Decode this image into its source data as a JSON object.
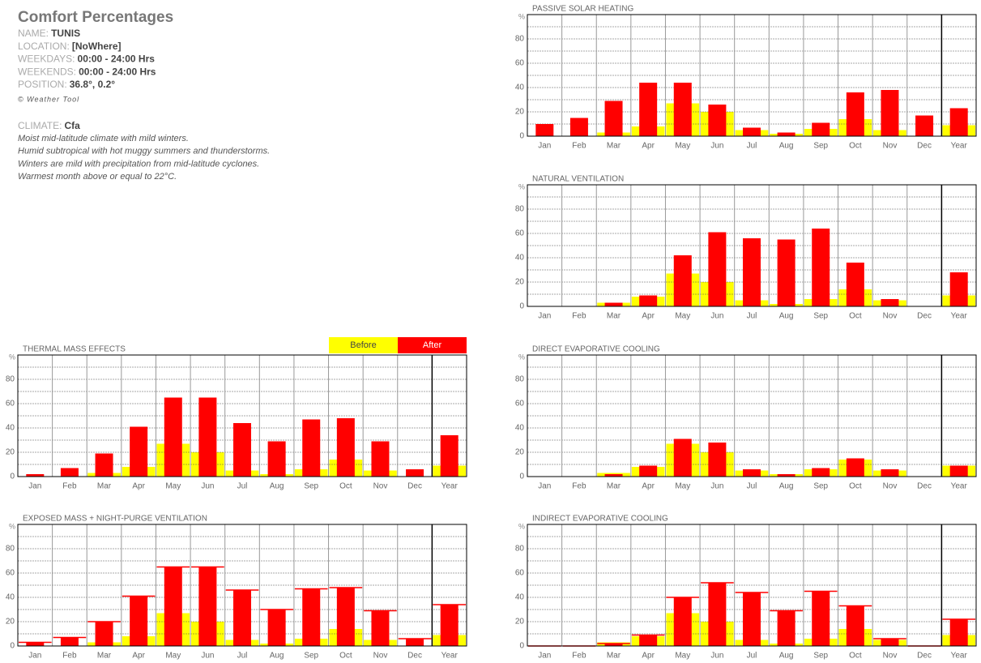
{
  "header": {
    "title": "Comfort Percentages",
    "fields": [
      {
        "label": "NAME:",
        "value": "TUNIS"
      },
      {
        "label": "LOCATION:",
        "value": "[NoWhere]"
      },
      {
        "label": "WEEKDAYS:",
        "value": "00:00 - 24:00 Hrs"
      },
      {
        "label": "WEEKENDS:",
        "value": "00:00 - 24:00 Hrs"
      },
      {
        "label": "POSITION:",
        "value": "36.8°, 0.2°"
      }
    ],
    "copyright": "© Weather Tool",
    "climate_label": "CLIMATE:",
    "climate_value": "Cfa",
    "climate_description": [
      "Moist mid-latitude climate with mild winters.",
      "Humid subtropical with hot muggy summers and thunderstorms.",
      "Winters are mild with precipitation from mid-latitude cyclones.",
      "Warmest month above or equal to 22°C."
    ]
  },
  "chart_data": [
    {
      "type": "bar",
      "title": "PASSIVE SOLAR HEATING",
      "ylabel": "%",
      "categories": [
        "Jan",
        "Feb",
        "Mar",
        "Apr",
        "May",
        "Jun",
        "Jul",
        "Aug",
        "Sep",
        "Oct",
        "Nov",
        "Dec",
        "Year"
      ],
      "series": [
        {
          "name": "Before",
          "color": "#ffff00",
          "values": [
            0,
            0,
            3,
            8,
            27,
            20,
            5,
            2,
            6,
            14,
            5,
            0,
            9
          ]
        },
        {
          "name": "After",
          "color": "#ff0000",
          "values": [
            10,
            15,
            29,
            44,
            44,
            26,
            7,
            3,
            11,
            36,
            38,
            17,
            23
          ]
        }
      ],
      "ylim": [
        0,
        100
      ],
      "yticks": [
        0,
        20,
        40,
        60,
        80
      ],
      "minor_yticks": [
        10,
        30,
        50,
        70,
        90
      ],
      "outline": false,
      "legend": false
    },
    {
      "type": "bar",
      "title": "NATURAL VENTILATION",
      "ylabel": "%",
      "categories": [
        "Jan",
        "Feb",
        "Mar",
        "Apr",
        "May",
        "Jun",
        "Jul",
        "Aug",
        "Sep",
        "Oct",
        "Nov",
        "Dec",
        "Year"
      ],
      "series": [
        {
          "name": "Before",
          "color": "#ffff00",
          "values": [
            0,
            0,
            3,
            8,
            27,
            20,
            5,
            2,
            6,
            14,
            5,
            0,
            9
          ]
        },
        {
          "name": "After",
          "color": "#ff0000",
          "values": [
            0,
            0,
            3,
            9,
            42,
            61,
            56,
            55,
            64,
            36,
            6,
            0,
            28
          ]
        }
      ],
      "ylim": [
        0,
        100
      ],
      "yticks": [
        0,
        20,
        40,
        60,
        80
      ],
      "minor_yticks": [
        10,
        30,
        50,
        70,
        90
      ],
      "outline": false,
      "legend": false
    },
    {
      "type": "bar",
      "title": "THERMAL MASS EFFECTS",
      "ylabel": "%",
      "categories": [
        "Jan",
        "Feb",
        "Mar",
        "Apr",
        "May",
        "Jun",
        "Jul",
        "Aug",
        "Sep",
        "Oct",
        "Nov",
        "Dec",
        "Year"
      ],
      "series": [
        {
          "name": "Before",
          "color": "#ffff00",
          "values": [
            0,
            0,
            3,
            8,
            27,
            20,
            5,
            2,
            6,
            14,
            5,
            0,
            9
          ]
        },
        {
          "name": "After",
          "color": "#ff0000",
          "values": [
            2,
            7,
            19,
            41,
            65,
            65,
            44,
            29,
            47,
            48,
            29,
            6,
            34
          ]
        }
      ],
      "ylim": [
        0,
        100
      ],
      "yticks": [
        0,
        20,
        40,
        60,
        80
      ],
      "minor_yticks": [
        10,
        30,
        50,
        70,
        90
      ],
      "outline": false,
      "legend": true
    },
    {
      "type": "bar",
      "title": "DIRECT EVAPORATIVE COOLING",
      "ylabel": "%",
      "categories": [
        "Jan",
        "Feb",
        "Mar",
        "Apr",
        "May",
        "Jun",
        "Jul",
        "Aug",
        "Sep",
        "Oct",
        "Nov",
        "Dec",
        "Year"
      ],
      "series": [
        {
          "name": "Before",
          "color": "#ffff00",
          "values": [
            0,
            0,
            3,
            8,
            27,
            20,
            5,
            2,
            6,
            14,
            5,
            0,
            9
          ]
        },
        {
          "name": "After",
          "color": "#ff0000",
          "values": [
            0,
            0,
            2,
            9,
            31,
            28,
            6,
            2,
            7,
            15,
            6,
            0,
            9
          ]
        }
      ],
      "ylim": [
        0,
        100
      ],
      "yticks": [
        0,
        20,
        40,
        60,
        80
      ],
      "minor_yticks": [
        10,
        30,
        50,
        70,
        90
      ],
      "outline": false,
      "legend": false
    },
    {
      "type": "bar",
      "title": "EXPOSED MASS + NIGHT-PURGE VENTILATION",
      "ylabel": "%",
      "categories": [
        "Jan",
        "Feb",
        "Mar",
        "Apr",
        "May",
        "Jun",
        "Jul",
        "Aug",
        "Sep",
        "Oct",
        "Nov",
        "Dec",
        "Year"
      ],
      "series": [
        {
          "name": "Before",
          "color": "#ffff00",
          "values": [
            0,
            0,
            3,
            8,
            27,
            20,
            5,
            2,
            6,
            14,
            5,
            0,
            9
          ]
        },
        {
          "name": "After",
          "color": "#ff0000",
          "values": [
            3,
            7,
            20,
            41,
            65,
            65,
            46,
            30,
            47,
            48,
            29,
            6,
            34
          ]
        }
      ],
      "ylim": [
        0,
        100
      ],
      "yticks": [
        0,
        20,
        40,
        60,
        80
      ],
      "minor_yticks": [
        10,
        30,
        50,
        70,
        90
      ],
      "outline": true,
      "legend": false
    },
    {
      "type": "bar",
      "title": "INDIRECT EVAPORATIVE COOLING",
      "ylabel": "%",
      "categories": [
        "Jan",
        "Feb",
        "Mar",
        "Apr",
        "May",
        "Jun",
        "Jul",
        "Aug",
        "Sep",
        "Oct",
        "Nov",
        "Dec",
        "Year"
      ],
      "series": [
        {
          "name": "Before",
          "color": "#ffff00",
          "values": [
            0,
            0,
            3,
            8,
            27,
            20,
            5,
            2,
            6,
            14,
            5,
            0,
            9
          ]
        },
        {
          "name": "After",
          "color": "#ff0000",
          "values": [
            0,
            0,
            2,
            9,
            40,
            52,
            44,
            29,
            45,
            33,
            6,
            0,
            22
          ]
        }
      ],
      "ylim": [
        0,
        100
      ],
      "yticks": [
        0,
        20,
        40,
        60,
        80
      ],
      "minor_yticks": [
        10,
        30,
        50,
        70,
        90
      ],
      "outline": true,
      "legend": false
    }
  ]
}
